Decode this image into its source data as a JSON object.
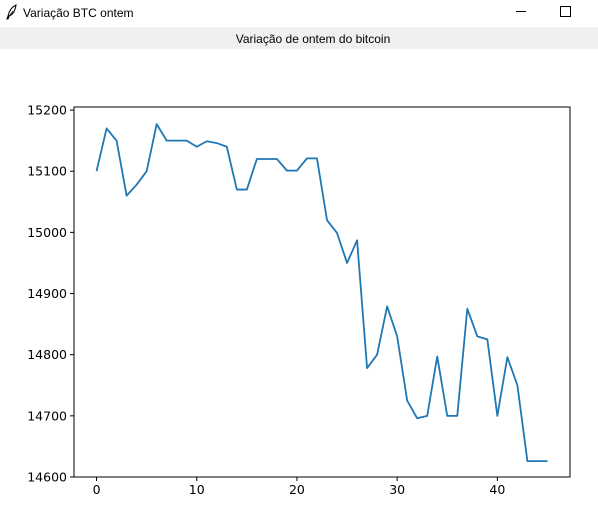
{
  "window": {
    "title": "Variação BTC ontem",
    "icon": "feather-icon",
    "minimize_icon": "minimize-icon",
    "maximize_icon": "maximize-icon"
  },
  "header": {
    "label": "Variação de ontem do bitcoin"
  },
  "chart_data": {
    "type": "line",
    "title": "",
    "xlabel": "",
    "ylabel": "",
    "xlim": [
      -2.25,
      47.25
    ],
    "ylim": [
      14600,
      15205
    ],
    "xticks": [
      0,
      10,
      20,
      30,
      40
    ],
    "yticks": [
      14600,
      14700,
      14800,
      14900,
      15000,
      15100,
      15200
    ],
    "grid": false,
    "line_color": "#1f77b4",
    "x": [
      0,
      1,
      2,
      3,
      4,
      5,
      6,
      7,
      8,
      9,
      10,
      11,
      12,
      13,
      14,
      15,
      16,
      17,
      18,
      19,
      20,
      21,
      22,
      23,
      24,
      25,
      26,
      27,
      28,
      29,
      30,
      31,
      32,
      33,
      34,
      35,
      36,
      37,
      38,
      39,
      40,
      41,
      42,
      43,
      44,
      45
    ],
    "y": [
      15100,
      15170,
      15150,
      15060,
      15078,
      15100,
      15177,
      15150,
      15150,
      15150,
      15140,
      15149,
      15146,
      15140,
      15070,
      15070,
      15120,
      15120,
      15120,
      15101,
      15101,
      15121,
      15121,
      15020,
      14999,
      14950,
      14987,
      14778,
      14800,
      14879,
      14830,
      14725,
      14696,
      14700,
      14797,
      14700,
      14700,
      14875,
      14830,
      14825,
      14700,
      14796,
      14750,
      14626,
      14626,
      14626
    ]
  }
}
